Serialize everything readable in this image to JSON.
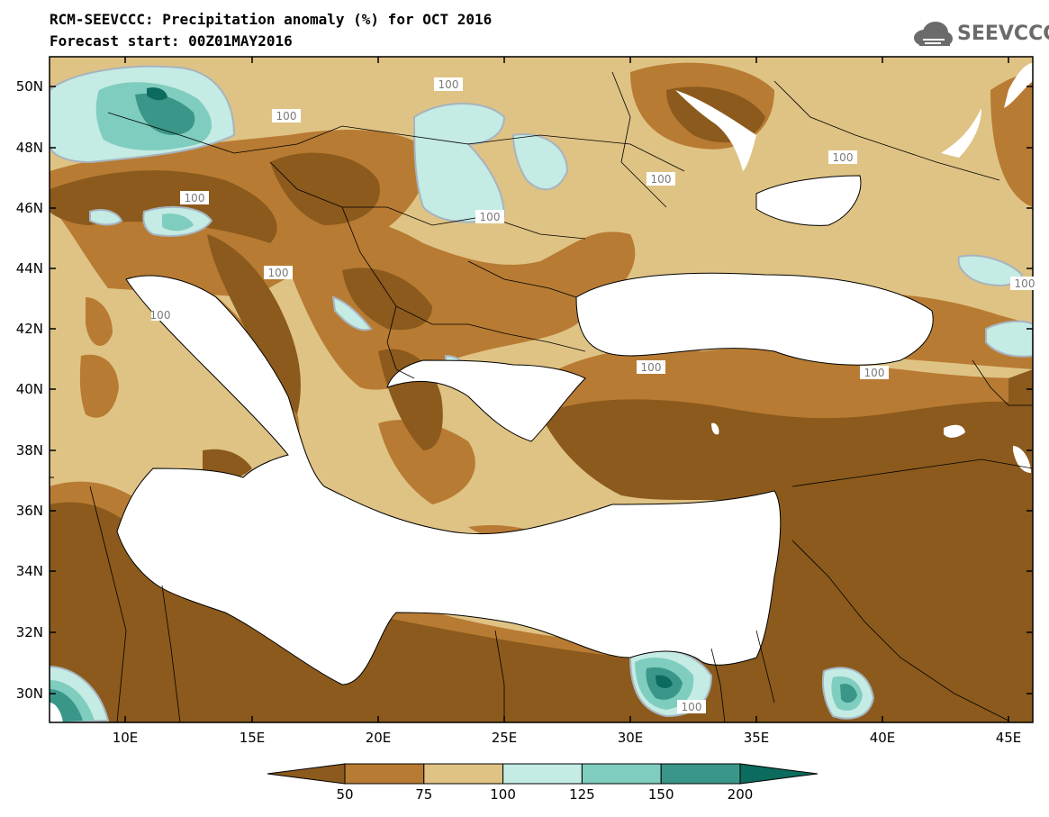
{
  "title": {
    "line1": "RCM-SEEVCCC: Precipitation anomaly (%) for OCT 2016",
    "line2": "Forecast start: 00Z01MAY2016"
  },
  "logo": {
    "text": "SEEVCCC",
    "icon": "cloud-logo-icon"
  },
  "map": {
    "lat_labels": [
      "50N",
      "48N",
      "46N",
      "44N",
      "42N",
      "40N",
      "38N",
      "36N",
      "34N",
      "32N",
      "30N"
    ],
    "lon_labels": [
      "10E",
      "15E",
      "20E",
      "25E",
      "30E",
      "35E",
      "40E",
      "45E"
    ],
    "contour_labels": [
      "100",
      "100",
      "100",
      "100",
      "100",
      "100",
      "100",
      "100",
      "100",
      "100",
      "100",
      "100"
    ]
  },
  "legend": {
    "thresholds": [
      "50",
      "75",
      "100",
      "125",
      "150",
      "200"
    ],
    "colors": [
      "#8b5a1c",
      "#b87b33",
      "#dfc384",
      "#c4ebe4",
      "#7fcdbe",
      "#3a9689",
      "#0b6b5e"
    ]
  }
}
